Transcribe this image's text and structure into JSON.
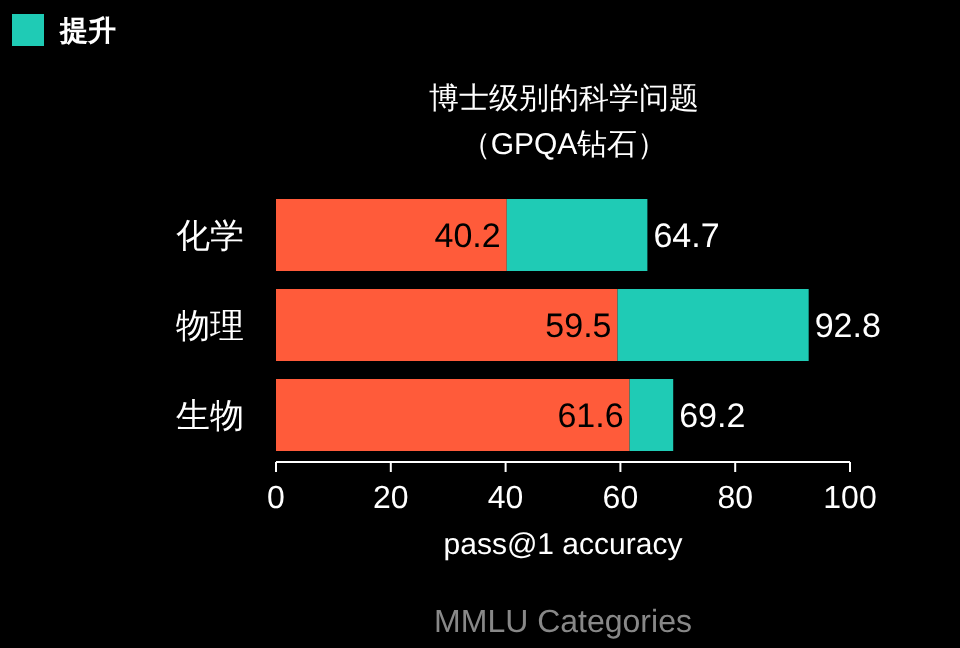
{
  "chart_data": {
    "type": "bar",
    "orientation": "horizontal",
    "stacked": true,
    "title": "博士级别的科学问题",
    "subtitle": "（GPQA钻石）",
    "xlabel": "pass@1 accuracy",
    "categories": [
      "化学",
      "物理",
      "生物"
    ],
    "series": [
      {
        "color": "#ff5b3a",
        "values": [
          40.2,
          59.5,
          61.6
        ],
        "value_labels": [
          "40.2",
          "59.5",
          "61.6"
        ]
      },
      {
        "name": "提升",
        "color": "#1fcbb5",
        "values": [
          24.5,
          33.3,
          7.6
        ]
      }
    ],
    "totals": [
      "64.7",
      "92.8",
      "69.2"
    ],
    "xlim": [
      0,
      100
    ],
    "xticks": [
      0,
      20,
      40,
      60,
      80,
      100
    ],
    "legend": "top left",
    "annotations": [
      "MMLU Categories"
    ]
  }
}
